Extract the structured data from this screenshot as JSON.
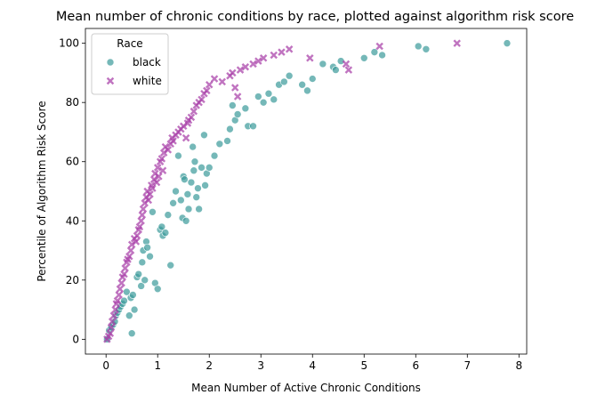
{
  "chart_data": {
    "type": "scatter",
    "title": "Mean number of chronic conditions by race, plotted against algorithm risk score",
    "xlabel": "Mean Number of Active Chronic Conditions",
    "ylabel": "Percentile of Algorithm Risk Score",
    "xlim": [
      -0.4,
      8.15
    ],
    "ylim": [
      -5,
      105
    ],
    "xticks": [
      0,
      1,
      2,
      3,
      4,
      5,
      6,
      7,
      8
    ],
    "yticks": [
      0,
      20,
      40,
      60,
      80,
      100
    ],
    "grid": false,
    "legend": {
      "title": "Race",
      "position": "top-left"
    },
    "series": [
      {
        "name": "black",
        "marker": "circle",
        "color": "#3a9a9a",
        "x": [
          0.02,
          0.06,
          0.1,
          0.14,
          0.17,
          0.19,
          0.22,
          0.25,
          0.28,
          0.32,
          0.35,
          0.4,
          0.45,
          0.48,
          0.5,
          0.52,
          0.55,
          0.6,
          0.63,
          0.68,
          0.7,
          0.72,
          0.75,
          0.78,
          0.8,
          0.85,
          0.9,
          0.95,
          1.0,
          1.05,
          1.08,
          1.1,
          1.15,
          1.2,
          1.25,
          1.3,
          1.35,
          1.4,
          1.45,
          1.48,
          1.5,
          1.52,
          1.55,
          1.58,
          1.6,
          1.65,
          1.68,
          1.7,
          1.72,
          1.75,
          1.78,
          1.8,
          1.85,
          1.9,
          1.92,
          1.95,
          2.0,
          2.1,
          2.2,
          2.35,
          2.4,
          2.45,
          2.5,
          2.55,
          2.7,
          2.75,
          2.85,
          2.95,
          3.05,
          3.15,
          3.25,
          3.35,
          3.45,
          3.55,
          3.8,
          3.9,
          4.0,
          4.2,
          4.4,
          4.45,
          4.55,
          5.0,
          5.2,
          5.35,
          6.05,
          6.2,
          7.77
        ],
        "y": [
          0,
          3,
          4,
          5,
          6,
          8,
          9,
          10,
          11,
          12,
          13,
          16,
          8,
          14,
          2,
          15,
          10,
          21,
          22,
          18,
          26,
          30,
          20,
          33,
          31,
          28,
          43,
          19,
          17,
          37,
          38,
          35,
          36,
          42,
          25,
          46,
          50,
          62,
          47,
          41,
          55,
          54,
          40,
          49,
          44,
          53,
          65,
          57,
          60,
          48,
          51,
          44,
          58,
          69,
          52,
          56,
          58,
          62,
          66,
          67,
          71,
          79,
          74,
          76,
          78,
          72,
          72,
          82,
          80,
          83,
          81,
          86,
          87,
          89,
          86,
          84,
          88,
          93,
          92,
          91,
          94,
          95,
          97,
          96,
          99,
          98,
          100
        ]
      },
      {
        "name": "white",
        "marker": "x",
        "color": "#a83fa8",
        "x": [
          0.02,
          0.05,
          0.08,
          0.1,
          0.12,
          0.15,
          0.18,
          0.2,
          0.22,
          0.25,
          0.27,
          0.3,
          0.32,
          0.35,
          0.37,
          0.4,
          0.42,
          0.45,
          0.48,
          0.5,
          0.55,
          0.58,
          0.6,
          0.63,
          0.65,
          0.68,
          0.7,
          0.72,
          0.75,
          0.78,
          0.8,
          0.82,
          0.85,
          0.88,
          0.9,
          0.93,
          0.95,
          0.98,
          1.0,
          1.02,
          1.05,
          1.08,
          1.1,
          1.12,
          1.15,
          1.2,
          1.25,
          1.28,
          1.3,
          1.35,
          1.4,
          1.45,
          1.5,
          1.55,
          1.58,
          1.6,
          1.65,
          1.7,
          1.75,
          1.8,
          1.85,
          1.9,
          1.95,
          2.0,
          2.1,
          2.25,
          2.4,
          2.45,
          2.5,
          2.55,
          2.6,
          2.7,
          2.85,
          2.95,
          3.05,
          3.25,
          3.4,
          3.55,
          3.95,
          4.65,
          4.7,
          5.3,
          6.8
        ],
        "y": [
          0,
          1,
          2,
          4,
          6,
          8,
          10,
          12,
          13,
          15,
          17,
          19,
          21,
          22,
          24,
          26,
          27,
          28,
          30,
          32,
          34,
          33,
          35,
          37,
          38,
          40,
          42,
          44,
          46,
          48,
          50,
          47,
          49,
          52,
          51,
          54,
          56,
          53,
          58,
          55,
          60,
          61,
          57,
          63,
          65,
          64,
          66,
          68,
          67,
          69,
          70,
          71,
          72,
          68,
          73,
          74,
          75,
          77,
          79,
          80,
          81,
          83,
          84,
          86,
          88,
          87,
          89,
          90,
          85,
          82,
          91,
          92,
          93,
          94,
          95,
          96,
          97,
          98,
          95,
          93,
          91,
          99,
          100
        ]
      }
    ]
  }
}
